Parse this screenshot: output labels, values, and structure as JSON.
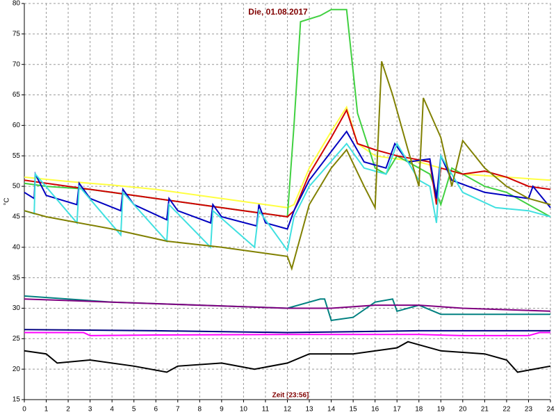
{
  "chart_data": {
    "type": "line",
    "title": "Die, 01.08.2017",
    "x_label": "Zeit [23:56]",
    "y_label": "°C",
    "xlim": [
      0,
      24
    ],
    "ylim": [
      15,
      80
    ],
    "xticks": [
      0,
      1,
      2,
      3,
      4,
      5,
      6,
      7,
      8,
      9,
      10,
      11,
      12,
      13,
      14,
      15,
      16,
      17,
      18,
      19,
      20,
      21,
      22,
      23,
      24
    ],
    "yticks": [
      15,
      20,
      25,
      30,
      35,
      40,
      45,
      50,
      55,
      60,
      65,
      70,
      75,
      80
    ],
    "grid": true,
    "series": [
      {
        "color": "#ffff40",
        "x": [
          0,
          2,
          4,
          6,
          8,
          10,
          12,
          12.3,
          13,
          14,
          14.7,
          15.2,
          16,
          17,
          18,
          19,
          20,
          22,
          24
        ],
        "values": [
          51.5,
          50.8,
          50.2,
          49.5,
          48.5,
          47.5,
          46.5,
          47,
          53,
          59,
          63,
          57,
          55,
          54.5,
          54,
          53,
          52,
          51.5,
          51
        ]
      },
      {
        "color": "#40d040",
        "x": [
          0,
          1,
          3,
          6,
          9,
          12,
          12.3,
          12.6,
          13.5,
          14,
          14.7,
          15.2,
          16,
          16.5,
          17,
          18,
          18.5,
          19,
          19.5,
          20,
          21,
          22,
          23,
          24
        ],
        "values": [
          50.5,
          50,
          49.5,
          48,
          46.5,
          45,
          60,
          77,
          78,
          79,
          79,
          62,
          53,
          52,
          55,
          53,
          52,
          47,
          53,
          52,
          50,
          49,
          47,
          45
        ]
      },
      {
        "color": "#d00000",
        "x": [
          0,
          2,
          4,
          6,
          8,
          10,
          12,
          12.3,
          13,
          14,
          14.7,
          15.2,
          16,
          17,
          18.5,
          18.8,
          19,
          20,
          21,
          22,
          23,
          24
        ],
        "values": [
          51,
          50,
          49,
          48,
          47,
          46,
          45,
          46,
          52,
          58,
          62.5,
          57,
          56,
          55,
          54,
          47,
          53,
          52,
          52.5,
          51.5,
          50,
          49.5
        ]
      },
      {
        "color": "#0000c0",
        "x": [
          0,
          0.45,
          0.5,
          1,
          2.4,
          2.5,
          3,
          4.4,
          4.5,
          5,
          6.5,
          6.6,
          7,
          8.5,
          8.6,
          9,
          10.6,
          10.7,
          11,
          12,
          12.3,
          13,
          14.7,
          15.5,
          16.5,
          16.9,
          17.5,
          18.5,
          18.8,
          19,
          19.5,
          21,
          23,
          23.2,
          24
        ],
        "values": [
          49,
          48,
          52,
          48.5,
          47,
          50.5,
          48,
          46,
          49.5,
          47,
          44.5,
          48,
          46,
          44,
          47,
          45,
          43.5,
          47,
          44,
          43,
          46,
          51,
          59,
          54,
          53,
          57,
          54,
          54.5,
          48,
          55,
          51,
          49,
          48,
          50,
          46.5
        ]
      },
      {
        "color": "#40e0e0",
        "x": [
          0,
          0.45,
          0.5,
          2.4,
          2.5,
          4.4,
          4.5,
          6.5,
          6.6,
          8.5,
          8.6,
          10.5,
          10.7,
          12,
          12.3,
          13,
          14.7,
          15.5,
          16.5,
          17,
          18,
          18.5,
          18.8,
          19,
          20,
          21.5,
          23,
          24
        ],
        "values": [
          46,
          45.5,
          52,
          44,
          50,
          42,
          49,
          41,
          47,
          40,
          46,
          40,
          46,
          39.5,
          45,
          50,
          57,
          53,
          52,
          57,
          51,
          50,
          44,
          55,
          49,
          46.5,
          46,
          45
        ]
      },
      {
        "color": "#808000",
        "x": [
          0,
          1,
          4,
          6.5,
          9,
          11,
          12,
          12.2,
          13,
          14,
          14.7,
          15.5,
          16,
          16.3,
          16.8,
          17.5,
          18,
          18.2,
          19,
          19.5,
          20,
          21,
          22,
          23,
          24
        ],
        "values": [
          46,
          45,
          43,
          41,
          40,
          39,
          38.5,
          36.5,
          47,
          53,
          56,
          50,
          46.5,
          70.5,
          65,
          56,
          50,
          64.5,
          58,
          50,
          57.5,
          53,
          50,
          48,
          47
        ]
      },
      {
        "color": "#008080",
        "x": [
          0,
          4,
          8,
          12,
          13.5,
          13.7,
          14,
          15,
          16,
          16.8,
          17,
          18,
          19,
          24
        ],
        "values": [
          32,
          31,
          30.5,
          30,
          31.5,
          31.5,
          28,
          28.5,
          31,
          31.5,
          29.5,
          30.5,
          29,
          29
        ]
      },
      {
        "color": "#800080",
        "x": [
          0,
          4,
          8,
          12,
          14,
          16,
          18,
          20,
          24
        ],
        "values": [
          31.5,
          31,
          30.5,
          30,
          30,
          30.5,
          30.5,
          30,
          29.5
        ]
      },
      {
        "color": "#000080",
        "x": [
          0,
          6,
          12,
          18,
          24
        ],
        "values": [
          26.5,
          26.3,
          26,
          26.3,
          26.3
        ]
      },
      {
        "color": "#ff00ff",
        "x": [
          0,
          2.7,
          3,
          6,
          12,
          18,
          20,
          23,
          23.5,
          24
        ],
        "values": [
          26,
          26,
          25.5,
          25.6,
          25.7,
          25.7,
          25.5,
          25.5,
          26,
          26
        ]
      },
      {
        "color": "#000000",
        "x": [
          0,
          1,
          1.5,
          3,
          5,
          6.5,
          7,
          9,
          10.5,
          12,
          13,
          15,
          17,
          17.5,
          19,
          21,
          22,
          22.5,
          24
        ],
        "values": [
          23,
          22.5,
          21,
          21.5,
          20.5,
          19.5,
          20.5,
          21,
          20,
          21,
          22.5,
          22.5,
          23.5,
          24.5,
          23,
          22.5,
          21.5,
          19.5,
          20.5
        ]
      }
    ]
  }
}
